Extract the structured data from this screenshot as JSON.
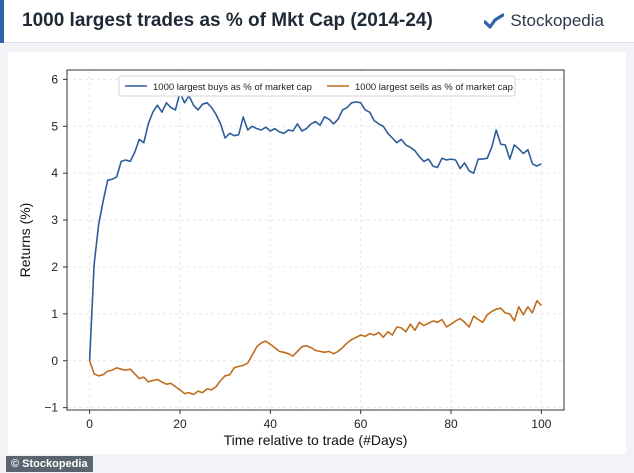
{
  "header": {
    "title": "1000 largest trades as % of Mkt Cap (2014-24)",
    "brand": "Stockopedia",
    "brand_icon": "stockopedia-logo-icon"
  },
  "watermark": "© Stockopedia",
  "colors": {
    "accent": "#2f62a8",
    "buys": "#2d5d9a",
    "sells": "#c06c1c"
  },
  "chart_data": {
    "type": "line",
    "title": "",
    "xlabel": "Time relative to trade (#Days)",
    "ylabel": "Returns (%)",
    "xlim": [
      -5,
      105
    ],
    "ylim": [
      -1.05,
      6.2
    ],
    "xticks": [
      0,
      20,
      40,
      60,
      80,
      100
    ],
    "yticks": [
      -1,
      0,
      1,
      2,
      3,
      4,
      5,
      6
    ],
    "grid": true,
    "legend_position": "top",
    "series": [
      {
        "name": "1000 largest buys as % of market cap",
        "color": "#2d5d9a",
        "x": [
          0,
          1,
          2,
          3,
          4,
          5,
          6,
          7,
          8,
          9,
          10,
          11,
          12,
          13,
          14,
          15,
          16,
          17,
          18,
          19,
          20,
          21,
          22,
          23,
          24,
          25,
          26,
          27,
          28,
          29,
          30,
          31,
          32,
          33,
          34,
          35,
          36,
          37,
          38,
          39,
          40,
          41,
          42,
          43,
          44,
          45,
          46,
          47,
          48,
          49,
          50,
          51,
          52,
          53,
          54,
          55,
          56,
          57,
          58,
          59,
          60,
          61,
          62,
          63,
          64,
          65,
          66,
          67,
          68,
          69,
          70,
          71,
          72,
          73,
          74,
          75,
          76,
          77,
          78,
          79,
          80,
          81,
          82,
          83,
          84,
          85,
          86,
          87,
          88,
          89,
          90,
          91,
          92,
          93,
          94,
          95,
          96,
          97,
          98,
          99,
          100
        ],
        "y": [
          0,
          2.05,
          2.9,
          3.4,
          3.85,
          3.87,
          3.92,
          4.25,
          4.28,
          4.25,
          4.45,
          4.72,
          4.65,
          5.05,
          5.3,
          5.45,
          5.3,
          5.5,
          5.4,
          5.35,
          5.72,
          5.5,
          5.65,
          5.45,
          5.35,
          5.47,
          5.5,
          5.4,
          5.25,
          5.05,
          4.75,
          4.85,
          4.8,
          4.82,
          5.2,
          4.92,
          5.0,
          4.95,
          4.92,
          4.98,
          4.9,
          4.95,
          4.88,
          4.85,
          4.92,
          4.9,
          5.05,
          4.9,
          4.95,
          5.05,
          5.1,
          5.02,
          5.2,
          5.15,
          5.05,
          5.15,
          5.35,
          5.4,
          5.5,
          5.52,
          5.5,
          5.35,
          5.3,
          5.12,
          5.05,
          5.0,
          4.85,
          4.75,
          4.65,
          4.72,
          4.6,
          4.55,
          4.48,
          4.35,
          4.25,
          4.3,
          4.15,
          4.12,
          4.32,
          4.28,
          4.3,
          4.28,
          4.1,
          4.22,
          4.05,
          4.0,
          4.3,
          4.3,
          4.32,
          4.55,
          4.92,
          4.62,
          4.6,
          4.3,
          4.6,
          4.52,
          4.42,
          4.5,
          4.2,
          4.15,
          4.2
        ]
      },
      {
        "name": "1000 largest sells as % of market cap",
        "color": "#c06c1c",
        "x": [
          0,
          1,
          2,
          3,
          4,
          5,
          6,
          7,
          8,
          9,
          10,
          11,
          12,
          13,
          14,
          15,
          16,
          17,
          18,
          19,
          20,
          21,
          22,
          23,
          24,
          25,
          26,
          27,
          28,
          29,
          30,
          31,
          32,
          33,
          34,
          35,
          36,
          37,
          38,
          39,
          40,
          41,
          42,
          43,
          44,
          45,
          46,
          47,
          48,
          49,
          50,
          51,
          52,
          53,
          54,
          55,
          56,
          57,
          58,
          59,
          60,
          61,
          62,
          63,
          64,
          65,
          66,
          67,
          68,
          69,
          70,
          71,
          72,
          73,
          74,
          75,
          76,
          77,
          78,
          79,
          80,
          81,
          82,
          83,
          84,
          85,
          86,
          87,
          88,
          89,
          90,
          91,
          92,
          93,
          94,
          95,
          96,
          97,
          98,
          99,
          100
        ],
        "y": [
          0,
          -0.28,
          -0.32,
          -0.3,
          -0.22,
          -0.2,
          -0.15,
          -0.18,
          -0.2,
          -0.18,
          -0.28,
          -0.38,
          -0.35,
          -0.45,
          -0.42,
          -0.4,
          -0.45,
          -0.5,
          -0.48,
          -0.55,
          -0.62,
          -0.7,
          -0.68,
          -0.72,
          -0.65,
          -0.68,
          -0.6,
          -0.62,
          -0.55,
          -0.42,
          -0.32,
          -0.3,
          -0.15,
          -0.12,
          -0.1,
          -0.05,
          0.12,
          0.3,
          0.38,
          0.42,
          0.35,
          0.28,
          0.2,
          0.18,
          0.15,
          0.1,
          0.2,
          0.3,
          0.32,
          0.28,
          0.22,
          0.2,
          0.18,
          0.2,
          0.15,
          0.2,
          0.28,
          0.38,
          0.45,
          0.5,
          0.55,
          0.52,
          0.58,
          0.55,
          0.6,
          0.5,
          0.62,
          0.55,
          0.72,
          0.7,
          0.62,
          0.78,
          0.65,
          0.82,
          0.75,
          0.8,
          0.85,
          0.82,
          0.88,
          0.72,
          0.78,
          0.85,
          0.9,
          0.82,
          0.72,
          0.95,
          0.88,
          0.82,
          0.98,
          1.05,
          1.1,
          1.12,
          1.02,
          1.0,
          0.85,
          1.15,
          0.98,
          1.15,
          1.02,
          1.28,
          1.18
        ]
      }
    ]
  }
}
